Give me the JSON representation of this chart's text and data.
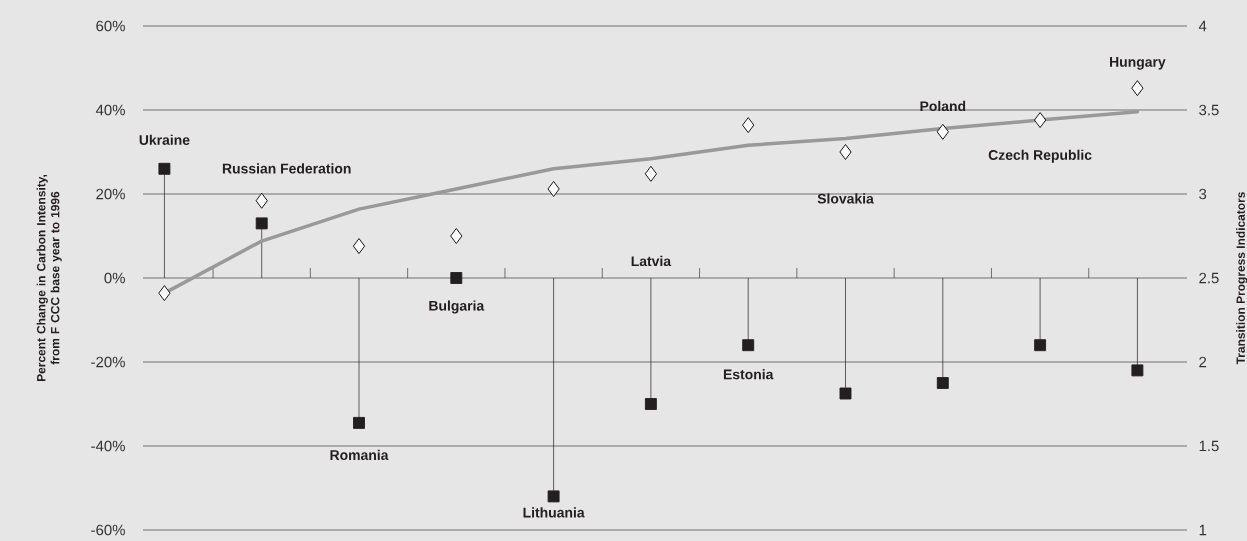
{
  "chart_data": {
    "type": "lollipop",
    "ylabel": "Percent Change in Carbon Intensity, from F CCC base year to 1996",
    "y2label": "Transition Progress Indicators",
    "categories": [
      null,
      null,
      null,
      null,
      null,
      null,
      null,
      null,
      null,
      null,
      null
    ],
    "series": [
      {
        "axis": "y",
        "marker": "square",
        "color": "#231f20",
        "values": [
          26,
          13,
          -34.5,
          0,
          -52,
          -30,
          -16,
          -27.5,
          -25,
          -16,
          -22
        ]
      },
      {
        "type": "scatter",
        "axis": "y2",
        "marker": "diamond",
        "color": "#ffffff",
        "values": [
          2.41,
          2.96,
          2.69,
          2.75,
          3.03,
          3.12,
          3.41,
          3.25,
          3.37,
          3.44,
          3.63
        ]
      },
      {
        "type": "line",
        "axis": "y2",
        "marker": "none",
        "color": "#999999",
        "values": [
          2.41,
          2.72,
          2.91,
          3.03,
          3.15,
          3.21,
          3.29,
          3.33,
          3.39,
          3.44,
          3.49
        ]
      }
    ],
    "ylim": [
      -60,
      60
    ],
    "yticks": [
      {
        "value": -60,
        "label": "-60%"
      },
      {
        "value": -40,
        "label": "-40%"
      },
      {
        "value": -20,
        "label": "-20%"
      },
      {
        "value": 0,
        "label": "0%"
      },
      {
        "value": 20,
        "label": "20%"
      },
      {
        "value": 40,
        "label": "40%"
      },
      {
        "value": 60,
        "label": "60%"
      }
    ],
    "y2lim": [
      1,
      4
    ],
    "y2ticks": [
      1,
      1.5,
      2,
      2.5,
      3,
      3.5,
      4
    ],
    "grid": "y",
    "annotations": [
      "Ukraine",
      "Russian Federation",
      "Romania",
      "Bulgaria",
      "Lithuania",
      "Latvia",
      "Estonia",
      "Slovakia",
      "Poland",
      "Czech Republic",
      "Hungary"
    ]
  }
}
